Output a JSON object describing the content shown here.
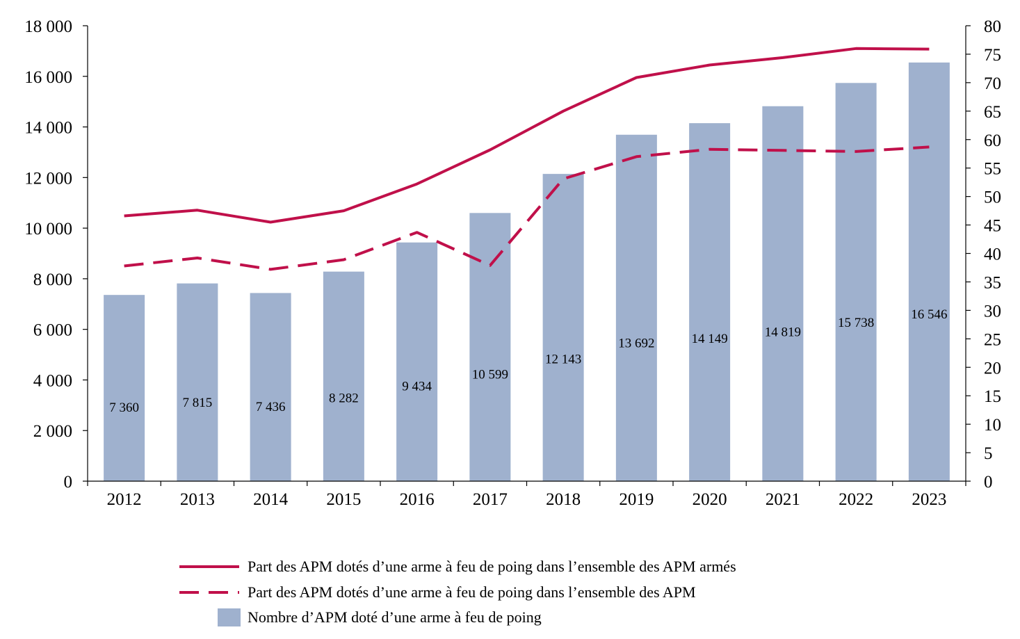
{
  "chart_data": {
    "type": "bar",
    "categories": [
      "2012",
      "2013",
      "2014",
      "2015",
      "2016",
      "2017",
      "2018",
      "2019",
      "2020",
      "2021",
      "2022",
      "2023"
    ],
    "series": [
      {
        "name": "Nombre d’APM doté d’une arme à feu de poing",
        "type": "bar",
        "axis": "left",
        "color": "#9fb1ce",
        "values": [
          7360,
          7815,
          7436,
          8282,
          9434,
          10599,
          12143,
          13692,
          14149,
          14819,
          15738,
          16546
        ],
        "labels": [
          "7 360",
          "7 815",
          "7 436",
          "8 282",
          "9 434",
          "10 599",
          "12 143",
          "13 692",
          "14 149",
          "14 819",
          "15 738",
          "16 546"
        ]
      },
      {
        "name": "Part des APM dotés d’une arme à feu de poing dans l’ensemble des APM armés",
        "type": "line",
        "style": "solid",
        "axis": "right",
        "color": "#c0104a",
        "values": [
          46.6,
          47.6,
          45.5,
          47.5,
          52.2,
          58.2,
          65.0,
          70.9,
          73.1,
          74.4,
          76.0,
          75.9
        ]
      },
      {
        "name": "Part des APM dotés d’une arme à feu de poing dans l’ensemble des APM",
        "type": "line",
        "style": "dashed",
        "axis": "right",
        "color": "#c0104a",
        "values": [
          37.8,
          39.2,
          37.2,
          38.9,
          43.7,
          37.9,
          53.1,
          57.0,
          58.3,
          58.1,
          57.9,
          58.7
        ]
      }
    ],
    "y_left": {
      "range": [
        0,
        18000
      ],
      "ticks": [
        0,
        2000,
        4000,
        6000,
        8000,
        10000,
        12000,
        14000,
        16000,
        18000
      ],
      "tick_labels": [
        "0",
        "2 000",
        "4 000",
        "6 000",
        "8 000",
        "10 000",
        "12 000",
        "14 000",
        "16 000",
        "18 000"
      ]
    },
    "y_right": {
      "range": [
        0,
        80
      ],
      "ticks": [
        0,
        5,
        10,
        15,
        20,
        25,
        30,
        35,
        40,
        45,
        50,
        55,
        60,
        65,
        70,
        75,
        80
      ],
      "tick_labels": [
        "0",
        "5",
        "10",
        "15",
        "20",
        "25",
        "30",
        "35",
        "40",
        "45",
        "50",
        "55",
        "60",
        "65",
        "70",
        "75",
        "80"
      ]
    },
    "grid": false,
    "legend": {
      "position": "bottom"
    }
  }
}
